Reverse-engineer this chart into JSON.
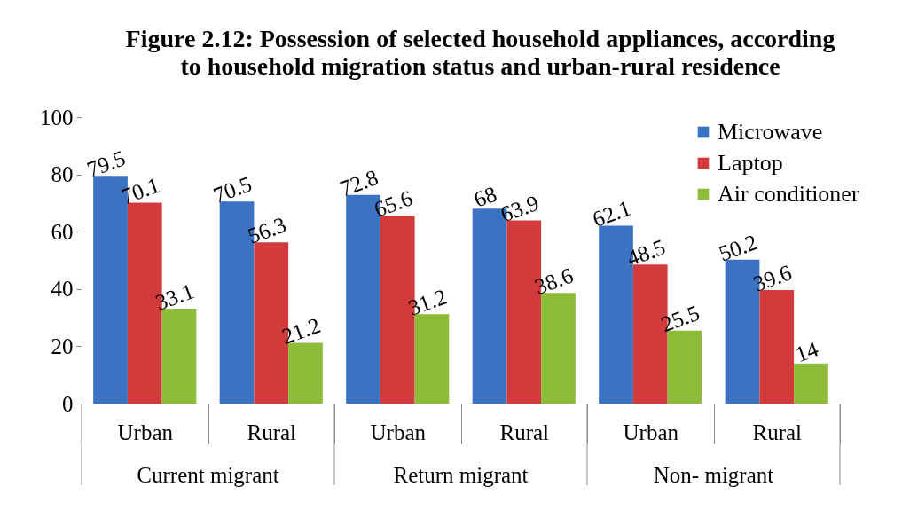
{
  "chart_data": {
    "type": "bar",
    "title": "Figure 2.12: Possession of selected household appliances, according\nto household migration status and urban-rural residence",
    "categories": [
      "Urban",
      "Rural",
      "Urban",
      "Rural",
      "Urban",
      "Rural"
    ],
    "annotations": [
      "Current migrant",
      "Return migrant",
      "Non- migrant"
    ],
    "series": [
      {
        "name": "Microwave",
        "color": "#3b72c2",
        "values": [
          79.5,
          70.5,
          72.8,
          68,
          62.1,
          50.2
        ]
      },
      {
        "name": "Laptop",
        "color": "#d13b3b",
        "values": [
          70.1,
          56.3,
          65.6,
          63.9,
          48.5,
          39.6
        ]
      },
      {
        "name": "Air conditioner",
        "color": "#8fbb3a",
        "values": [
          33.1,
          21.2,
          31.2,
          38.6,
          25.5,
          14
        ]
      }
    ],
    "ylim": [
      0,
      100
    ],
    "yticks": [
      0,
      20,
      40,
      60,
      80,
      100
    ],
    "data_labels": true,
    "legend": "top right"
  }
}
